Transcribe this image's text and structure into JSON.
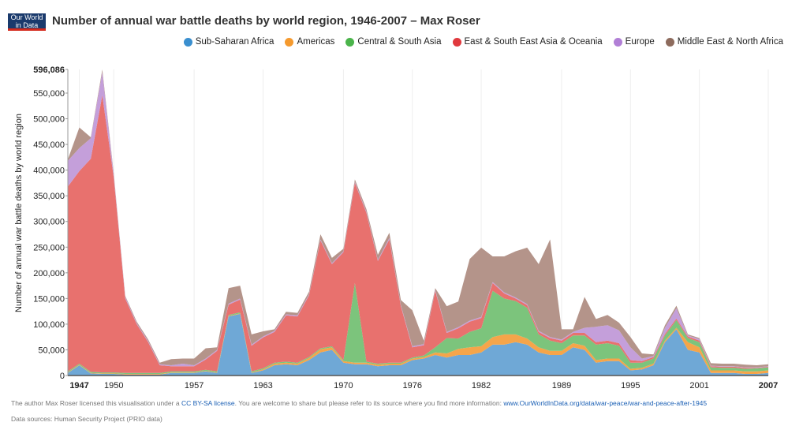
{
  "logo": {
    "line1": "Our World",
    "line2": "in Data"
  },
  "footer": {
    "license_prefix": "The author Max Roser licensed this visualisation under a",
    "license_link": "CC BY-SA license",
    "license_mid": ". You are welcome to share but please refer to its source where you find more information:",
    "source_link": "www.OurWorldInData.org/data/war-peace/war-and-peace-after-1945",
    "sources": "Data sources: Human Security Project (PRIO data)"
  },
  "chart_data": {
    "type": "area",
    "stacked": true,
    "title": "Number of annual war battle deaths by world region, 1946-2007 – Max Roser",
    "xlabel": "",
    "ylabel": "Number of annual war battle deaths by world region",
    "xlim": [
      1946,
      2007
    ],
    "ylim": [
      0,
      596086
    ],
    "x_ticks": [
      1947,
      1950,
      1957,
      1963,
      1970,
      1976,
      1982,
      1989,
      1995,
      2001,
      2007
    ],
    "y_ticks": [
      0,
      50000,
      100000,
      150000,
      200000,
      250000,
      300000,
      350000,
      400000,
      450000,
      500000,
      550000,
      596086
    ],
    "y_tick_labels": [
      "0",
      "50,000",
      "100,000",
      "150,000",
      "200,000",
      "250,000",
      "300,000",
      "350,000",
      "400,000",
      "450,000",
      "500,000",
      "550,000",
      "596,086"
    ],
    "legend_position": "top-right",
    "x": [
      1946,
      1947,
      1948,
      1949,
      1950,
      1951,
      1952,
      1953,
      1954,
      1955,
      1956,
      1957,
      1958,
      1959,
      1960,
      1961,
      1962,
      1963,
      1964,
      1965,
      1966,
      1967,
      1968,
      1969,
      1970,
      1971,
      1972,
      1973,
      1974,
      1975,
      1976,
      1977,
      1978,
      1979,
      1980,
      1981,
      1982,
      1983,
      1984,
      1985,
      1986,
      1987,
      1988,
      1989,
      1990,
      1991,
      1992,
      1993,
      1994,
      1995,
      1996,
      1997,
      1998,
      1999,
      2000,
      2001,
      2002,
      2003,
      2004,
      2005,
      2006,
      2007
    ],
    "series": [
      {
        "name": "Sub-Saharan Africa",
        "color": "#6fa8d6",
        "values": [
          5000,
          20000,
          4000,
          3000,
          3000,
          2000,
          2000,
          2000,
          2000,
          5000,
          5000,
          5000,
          8000,
          5000,
          115000,
          120000,
          5000,
          10000,
          20000,
          22000,
          20000,
          30000,
          45000,
          50000,
          25000,
          22000,
          22000,
          18000,
          20000,
          20000,
          30000,
          33000,
          40000,
          35000,
          40000,
          40000,
          45000,
          60000,
          60000,
          65000,
          60000,
          45000,
          40000,
          40000,
          55000,
          50000,
          25000,
          28000,
          28000,
          10000,
          12000,
          20000,
          65000,
          90000,
          50000,
          45000,
          5000,
          5000,
          5000,
          3000,
          3000,
          5000
        ]
      },
      {
        "name": "Americas",
        "color": "#f5a54a",
        "values": [
          1000,
          1000,
          1000,
          1000,
          1000,
          1000,
          1000,
          1000,
          1000,
          1000,
          1000,
          1000,
          1000,
          1000,
          1000,
          1000,
          1000,
          2000,
          3000,
          3000,
          3000,
          4000,
          6000,
          5000,
          3000,
          3000,
          3000,
          3000,
          3000,
          3000,
          3000,
          3000,
          5000,
          8000,
          12000,
          15000,
          12000,
          15000,
          20000,
          15000,
          12000,
          10000,
          8000,
          8000,
          8000,
          8000,
          5000,
          5000,
          5000,
          3000,
          3000,
          3000,
          3000,
          3000,
          15000,
          10000,
          5000,
          5000,
          5000,
          5000,
          5000,
          5000
        ]
      },
      {
        "name": "Central & South Asia",
        "color": "#7cc47c",
        "values": [
          2000,
          2000,
          2000,
          2000,
          2000,
          2000,
          2000,
          2000,
          2000,
          2000,
          2000,
          2000,
          2000,
          2000,
          2000,
          2000,
          2000,
          2000,
          2000,
          2000,
          2000,
          2000,
          2000,
          2000,
          2000,
          155000,
          2000,
          2000,
          2000,
          2000,
          2000,
          3000,
          10000,
          30000,
          20000,
          30000,
          35000,
          90000,
          70000,
          65000,
          60000,
          25000,
          20000,
          15000,
          15000,
          20000,
          30000,
          30000,
          25000,
          12000,
          10000,
          10000,
          10000,
          15000,
          8000,
          10000,
          6000,
          5000,
          5000,
          5000,
          6000,
          6000
        ]
      },
      {
        "name": "East & South East Asia & Oceania",
        "color": "#e8716e",
        "values": [
          360000,
          375000,
          415000,
          540000,
          380000,
          145000,
          95000,
          60000,
          15000,
          10000,
          10000,
          10000,
          20000,
          40000,
          20000,
          25000,
          50000,
          60000,
          60000,
          90000,
          90000,
          120000,
          210000,
          160000,
          210000,
          195000,
          290000,
          200000,
          240000,
          110000,
          20000,
          20000,
          110000,
          10000,
          20000,
          20000,
          20000,
          15000,
          10000,
          5000,
          5000,
          5000,
          5000,
          5000,
          5000,
          5000,
          5000,
          5000,
          5000,
          5000,
          3000,
          3000,
          3000,
          3000,
          3000,
          3000,
          2000,
          2000,
          2000,
          2000,
          1000,
          1000
        ]
      },
      {
        "name": "Europe",
        "color": "#c49fda",
        "values": [
          50000,
          45000,
          40000,
          45000,
          5000,
          3000,
          2000,
          2000,
          2000,
          2000,
          5000,
          2000,
          2000,
          2000,
          2000,
          2000,
          2000,
          2000,
          2000,
          2000,
          2000,
          2000,
          2000,
          2000,
          2000,
          2000,
          2000,
          2000,
          3000,
          2000,
          2000,
          2000,
          2000,
          2000,
          2000,
          2000,
          2000,
          2000,
          2000,
          2000,
          2000,
          2000,
          2000,
          2000,
          2000,
          10000,
          30000,
          30000,
          25000,
          25000,
          5000,
          2000,
          12000,
          20000,
          2000,
          3000,
          1000,
          1000,
          1000,
          1000,
          1000,
          1000
        ]
      },
      {
        "name": "Middle East & North Africa",
        "color": "#b4948a",
        "values": [
          3000,
          40000,
          2000,
          5000,
          3000,
          2000,
          3000,
          3000,
          3000,
          12000,
          10000,
          13000,
          20000,
          5000,
          30000,
          25000,
          20000,
          10000,
          3000,
          5000,
          5000,
          5000,
          10000,
          10000,
          5000,
          5000,
          5000,
          10000,
          10000,
          10000,
          70000,
          7000,
          3000,
          50000,
          50000,
          120000,
          135000,
          50000,
          70000,
          90000,
          110000,
          130000,
          190000,
          20000,
          5000,
          60000,
          15000,
          20000,
          15000,
          20000,
          10000,
          3000,
          5000,
          5000,
          2000,
          2000,
          5000,
          5000,
          5000,
          5000,
          4000,
          4000
        ]
      }
    ]
  }
}
